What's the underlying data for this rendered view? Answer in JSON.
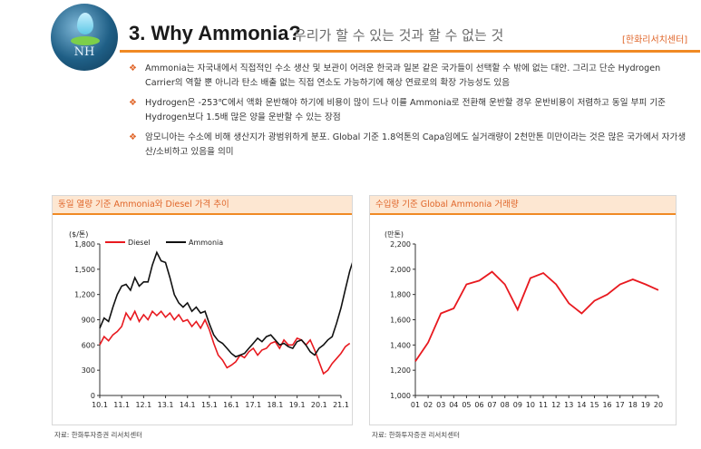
{
  "header": {
    "logo_text": "NH",
    "title": "3. Why Ammonia?",
    "subtitle": "우리가 할 수 있는 것과 할 수 없는 것",
    "source_tag": "[한화리서치센터]"
  },
  "bullets": [
    {
      "mark": "❖",
      "text": "Ammonia는 자국내에서 직접적인 수소 생산 및 보관이 어려운 한국과 일본 같은 국가들이 선택할 수 밖에 없는 대안. 그리고 단순 Hydrogen Carrier의 역할 뿐 아니라 탄소 배출 없는 직접 연소도 가능하기에 해상 연료로의 확장 가능성도 있음"
    },
    {
      "mark": "❖",
      "text": "Hydrogen은 -253℃에서 액화 운반해야 하기에 비용이 많이 드나 이를 Ammonia로 전환해 운반할 경우 운반비용이 저렴하고 동일 부피 기준 Hydrogen보다 1.5배 많은 양을 운반할 수 있는 장점"
    },
    {
      "mark": "❖",
      "text": "암모니아는 수소에 비해 생산지가 광범위하게 분포. Global 기준 1.8억톤의 Capa임에도 실거래량이 2천만톤 미만이라는 것은 많은 국가에서 자가생산/소비하고 있음을 의미"
    }
  ],
  "left_panel": {
    "title": "동일 열량 기준 Ammonia와 Diesel 가격 추이",
    "source": "자료: 한화투자증권 리서치센터"
  },
  "right_panel": {
    "title": "수입량 기준 Global Ammonia 거래량",
    "source": "자료: 한화투자증권 리서치센터"
  },
  "colors": {
    "accent": "#f08a24",
    "diesel": "#e8191f",
    "ammonia": "#111111",
    "volume": "#e8191f"
  },
  "chart_data": [
    {
      "type": "line",
      "ylabel": "($/톤)",
      "ylim": [
        0,
        1800
      ],
      "yticks": [
        0,
        300,
        600,
        900,
        1200,
        1500,
        1800
      ],
      "ytick_labels": [
        "0",
        "300",
        "600",
        "900",
        "1,200",
        "1,500",
        "1,800"
      ],
      "x_tick_labels": [
        "10.1",
        "11.1",
        "12.1",
        "13.1",
        "14.1",
        "15.1",
        "16.1",
        "17.1",
        "18.1",
        "19.1",
        "20.1",
        "21.1"
      ],
      "legend": "top-left",
      "grid": false,
      "series": [
        {
          "name": "Diesel",
          "color": "#e8191f",
          "x": [
            0,
            0.2,
            0.4,
            0.6,
            0.8,
            1.0,
            1.2,
            1.4,
            1.6,
            1.8,
            2.0,
            2.2,
            2.4,
            2.6,
            2.8,
            3.0,
            3.2,
            3.4,
            3.6,
            3.8,
            4.0,
            4.2,
            4.4,
            4.6,
            4.8,
            5.0,
            5.2,
            5.4,
            5.6,
            5.8,
            6.0,
            6.2,
            6.4,
            6.6,
            6.8,
            7.0,
            7.2,
            7.4,
            7.6,
            7.8,
            8.0,
            8.2,
            8.4,
            8.6,
            8.8,
            9.0,
            9.2,
            9.4,
            9.6,
            9.8,
            10.0,
            10.2,
            10.4,
            10.6,
            10.8,
            11.0,
            11.2,
            11.4
          ],
          "y": [
            600,
            700,
            650,
            720,
            760,
            820,
            980,
            900,
            1000,
            880,
            960,
            900,
            1000,
            950,
            1000,
            930,
            980,
            900,
            960,
            880,
            900,
            820,
            880,
            800,
            900,
            780,
            620,
            480,
            420,
            330,
            360,
            400,
            480,
            450,
            520,
            560,
            480,
            540,
            560,
            620,
            640,
            560,
            660,
            600,
            600,
            680,
            660,
            600,
            660,
            540,
            400,
            260,
            300,
            380,
            440,
            500,
            580,
            620
          ]
        },
        {
          "name": "Ammonia",
          "color": "#111111",
          "x": [
            0,
            0.2,
            0.4,
            0.6,
            0.8,
            1.0,
            1.2,
            1.4,
            1.6,
            1.8,
            2.0,
            2.2,
            2.4,
            2.6,
            2.8,
            3.0,
            3.2,
            3.4,
            3.6,
            3.8,
            4.0,
            4.2,
            4.4,
            4.6,
            4.8,
            5.0,
            5.2,
            5.4,
            5.6,
            5.8,
            6.0,
            6.2,
            6.4,
            6.6,
            6.8,
            7.0,
            7.2,
            7.4,
            7.6,
            7.8,
            8.0,
            8.2,
            8.4,
            8.6,
            8.8,
            9.0,
            9.2,
            9.4,
            9.6,
            9.8,
            10.0,
            10.2,
            10.4,
            10.6,
            10.8,
            11.0,
            11.2,
            11.4,
            11.6
          ],
          "y": [
            800,
            920,
            880,
            1050,
            1200,
            1300,
            1320,
            1250,
            1400,
            1300,
            1350,
            1350,
            1550,
            1700,
            1600,
            1580,
            1400,
            1200,
            1100,
            1050,
            1100,
            1000,
            1050,
            980,
            1000,
            850,
            720,
            650,
            620,
            560,
            500,
            460,
            480,
            500,
            560,
            620,
            680,
            640,
            700,
            720,
            660,
            600,
            620,
            580,
            560,
            640,
            660,
            600,
            520,
            480,
            560,
            600,
            660,
            700,
            860,
            1040,
            1260,
            1480,
            1640
          ]
        }
      ]
    },
    {
      "type": "line",
      "ylabel": "(만톤)",
      "ylim": [
        1000,
        2200
      ],
      "yticks": [
        1000,
        1200,
        1400,
        1600,
        1800,
        2000,
        2200
      ],
      "ytick_labels": [
        "1,000",
        "1,200",
        "1,400",
        "1,600",
        "1,800",
        "2,000",
        "2,200"
      ],
      "categories": [
        "01",
        "02",
        "03",
        "04",
        "05",
        "06",
        "07",
        "08",
        "09",
        "10",
        "11",
        "12",
        "13",
        "14",
        "15",
        "16",
        "17",
        "18",
        "19",
        "20"
      ],
      "grid": false,
      "series": [
        {
          "color": "#e8191f",
          "values": [
            1270,
            1420,
            1650,
            1690,
            1880,
            1910,
            1980,
            1880,
            1680,
            1930,
            1970,
            1880,
            1730,
            1650,
            1750,
            1800,
            1880,
            1920,
            1880,
            1835
          ]
        }
      ]
    }
  ]
}
